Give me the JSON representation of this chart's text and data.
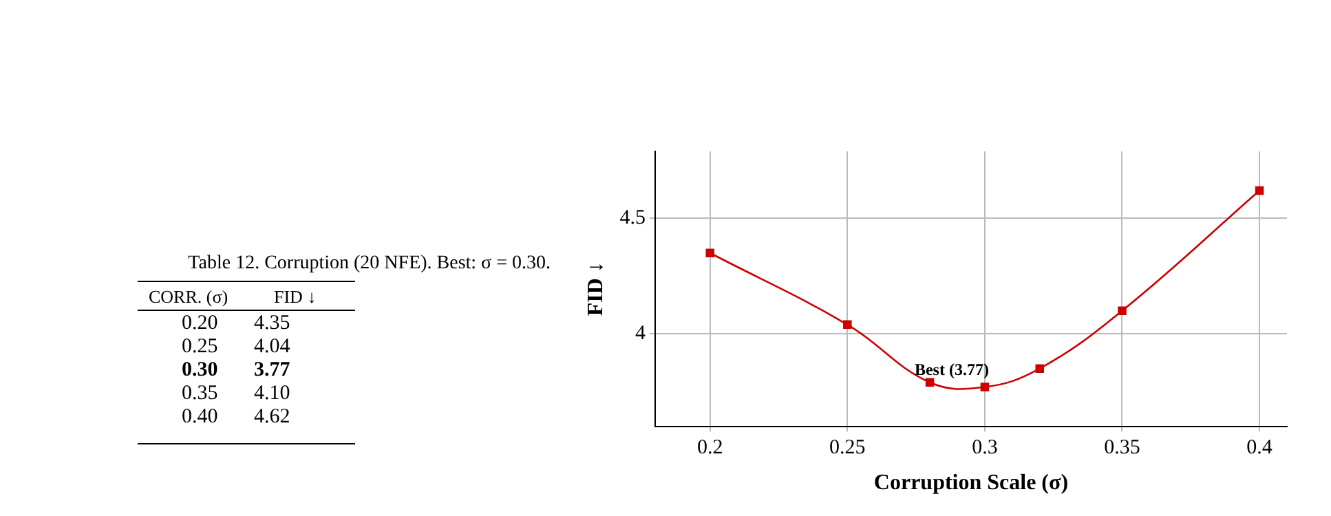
{
  "chart_data": [
    {
      "type": "other",
      "title": "Table 12. Corruption (20 NFE). Best: σ = 0.30.",
      "annotations": [
        "CORR. (σ)\tFID ↓",
        "0.20\t4.35",
        "0.25\t4.04",
        "0.30\t3.77",
        "0.35\t4.10",
        "0.40\t4.62"
      ]
    },
    {
      "type": "line",
      "xlabel": "Corruption Scale (σ)",
      "ylabel": "FID ↓",
      "x": [
        0.2,
        0.25,
        0.28,
        0.3,
        0.32,
        0.35,
        0.4
      ],
      "series": [
        {
          "color": "#cc0000",
          "values": [
            4.35,
            4.04,
            3.79,
            3.77,
            3.85,
            4.1,
            4.62
          ]
        }
      ],
      "xlim": [
        0.18,
        0.41
      ],
      "xticks": [
        {
          "value": 0.2,
          "label": "0.2"
        },
        0.25,
        {
          "value": 0.3,
          "label": "0.3"
        },
        0.35,
        {
          "value": 0.4,
          "label": "0.4"
        }
      ],
      "ylim": [
        3.6,
        4.79
      ],
      "yticks": [
        {
          "value": 4,
          "label": "4"
        },
        4.5
      ],
      "annotations": [
        {
          "text": "Best (3.77)",
          "x": 0.3,
          "y": 3.77
        }
      ],
      "grid": true,
      "legend": false,
      "marker": "square",
      "line_style": "solid"
    }
  ]
}
